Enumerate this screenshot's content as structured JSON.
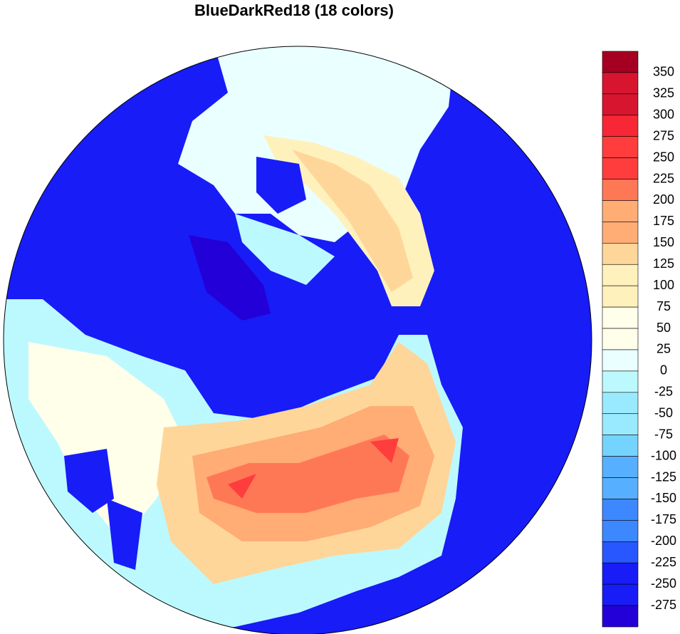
{
  "title": "BlueDarkRed18 (18 colors)",
  "colorbar": {
    "levels": [
      350,
      325,
      300,
      275,
      250,
      225,
      200,
      175,
      150,
      125,
      100,
      75,
      50,
      25,
      0,
      -25,
      -50,
      -75,
      -100,
      -125,
      -150,
      -175,
      -200,
      -225,
      -250,
      -275
    ],
    "colors": [
      "#a50021",
      "#d8152f",
      "#d8152f",
      "#f72735",
      "#ff3d3d",
      "#ff3d3d",
      "#ff7856",
      "#ffac75",
      "#ffac75",
      "#ffd699",
      "#fff1bc",
      "#fff1bc",
      "#ffffea",
      "#ffffea",
      "#eaffff",
      "#bcf9ff",
      "#99eaff",
      "#99eaff",
      "#75d3ff",
      "#56b0ff",
      "#56b0ff",
      "#3d87ff",
      "#3d87ff",
      "#2857ff",
      "#181cf7",
      "#181cf7",
      "#2400d8"
    ]
  }
}
